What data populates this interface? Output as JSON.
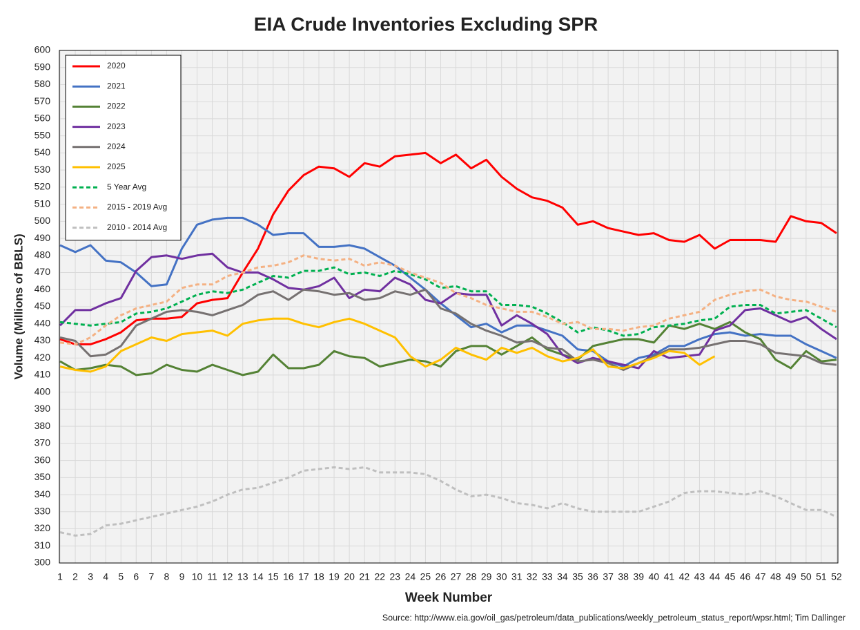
{
  "chart_data": {
    "type": "line",
    "title": "EIA Crude Inventories Excluding SPR",
    "xlabel": "Week Number",
    "ylabel": "Volume (Millions of BBLS)",
    "source": "Source: http://www.eia.gov/oil_gas/petroleum/data_publications/weekly_petroleum_status_report/wpsr.html; Tim Dallinger",
    "x": [
      1,
      2,
      3,
      4,
      5,
      6,
      7,
      8,
      9,
      10,
      11,
      12,
      13,
      14,
      15,
      16,
      17,
      18,
      19,
      20,
      21,
      22,
      23,
      24,
      25,
      26,
      27,
      28,
      29,
      30,
      31,
      32,
      33,
      34,
      35,
      36,
      37,
      38,
      39,
      40,
      41,
      42,
      43,
      44,
      45,
      46,
      47,
      48,
      49,
      50,
      51,
      52
    ],
    "xlim": [
      1,
      52
    ],
    "ylim": [
      300,
      600
    ],
    "yticks": [
      300,
      310,
      320,
      330,
      340,
      350,
      360,
      370,
      380,
      390,
      400,
      410,
      420,
      430,
      440,
      450,
      460,
      470,
      480,
      490,
      500,
      510,
      520,
      530,
      540,
      550,
      560,
      570,
      580,
      590,
      600
    ],
    "grid": true,
    "legend": "upper left",
    "series": [
      {
        "name": "2020",
        "color": "#ff0000",
        "dashed": false,
        "values": [
          431,
          428,
          428,
          431,
          435,
          442,
          443,
          443,
          444,
          452,
          454,
          455,
          470,
          484,
          504,
          518,
          527,
          532,
          531,
          526,
          534,
          532,
          538,
          539,
          540,
          534,
          539,
          531,
          536,
          526,
          519,
          514,
          512,
          508,
          498,
          500,
          496,
          494,
          492,
          493,
          489,
          488,
          492,
          484,
          489,
          489,
          489,
          488,
          503,
          500,
          499,
          493
        ]
      },
      {
        "name": "2021",
        "color": "#4472c4",
        "dashed": false,
        "values": [
          486,
          482,
          486,
          477,
          476,
          470,
          462,
          463,
          484,
          498,
          501,
          502,
          502,
          498,
          492,
          493,
          493,
          485,
          485,
          486,
          484,
          479,
          474,
          467,
          460,
          452,
          445,
          438,
          440,
          435,
          439,
          439,
          436,
          433,
          425,
          424,
          418,
          415,
          420,
          422,
          427,
          427,
          431,
          434,
          435,
          433,
          434,
          433,
          433,
          428,
          424,
          420
        ]
      },
      {
        "name": "2022",
        "color": "#548235",
        "dashed": false,
        "values": [
          418,
          413,
          414,
          416,
          415,
          410,
          411,
          416,
          413,
          412,
          416,
          413,
          410,
          412,
          422,
          414,
          414,
          416,
          424,
          421,
          420,
          415,
          417,
          419,
          418,
          415,
          424,
          427,
          427,
          422,
          427,
          432,
          425,
          422,
          419,
          427,
          429,
          431,
          431,
          429,
          439,
          437,
          440,
          437,
          441,
          435,
          431,
          419,
          414,
          424,
          418,
          419
        ]
      },
      {
        "name": "2023",
        "color": "#7030a0",
        "dashed": false,
        "values": [
          439,
          448,
          448,
          452,
          455,
          471,
          479,
          480,
          478,
          480,
          481,
          473,
          470,
          470,
          466,
          461,
          460,
          462,
          467,
          455,
          460,
          459,
          467,
          463,
          454,
          452,
          458,
          457,
          457,
          439,
          445,
          440,
          434,
          422,
          417,
          420,
          418,
          416,
          414,
          424,
          420,
          421,
          422,
          436,
          439,
          448,
          449,
          445,
          441,
          444,
          437,
          431
        ]
      },
      {
        "name": "2024",
        "color": "#767171",
        "dashed": false,
        "values": [
          432,
          430,
          421,
          422,
          427,
          439,
          443,
          447,
          448,
          447,
          445,
          448,
          451,
          457,
          459,
          454,
          460,
          459,
          457,
          458,
          454,
          455,
          459,
          457,
          460,
          449,
          446,
          440,
          436,
          433,
          429,
          430,
          426,
          425,
          418,
          419,
          417,
          413,
          417,
          421,
          425,
          425,
          426,
          428,
          430,
          430,
          428,
          423,
          422,
          421,
          417,
          416
        ]
      },
      {
        "name": "2025",
        "color": "#ffc000",
        "dashed": false,
        "values": [
          415,
          413,
          412,
          415,
          424,
          428,
          432,
          430,
          434,
          435,
          436,
          433,
          440,
          442,
          443,
          443,
          440,
          438,
          441,
          443,
          440,
          436,
          432,
          421,
          415,
          419,
          426,
          422,
          419,
          426,
          423,
          426,
          421,
          418,
          420,
          425,
          415,
          414,
          417,
          420,
          424,
          423,
          416,
          421,
          null,
          null,
          null,
          null,
          null,
          null,
          null,
          null
        ]
      },
      {
        "name": "5 Year Avg",
        "color": "#00b050",
        "dashed": true,
        "values": [
          441,
          440,
          439,
          440,
          441,
          446,
          447,
          449,
          453,
          457,
          459,
          458,
          460,
          464,
          468,
          467,
          471,
          471,
          473,
          469,
          470,
          468,
          471,
          469,
          466,
          461,
          462,
          459,
          459,
          451,
          451,
          450,
          446,
          441,
          435,
          438,
          436,
          433,
          434,
          438,
          439,
          440,
          442,
          443,
          450,
          451,
          451,
          446,
          447,
          448,
          443,
          438
        ]
      },
      {
        "name": "2015 - 2019 Avg",
        "color": "#f4b183",
        "dashed": true,
        "values": [
          429,
          428,
          432,
          439,
          445,
          449,
          451,
          453,
          461,
          463,
          463,
          468,
          470,
          473,
          474,
          476,
          480,
          478,
          477,
          478,
          474,
          476,
          474,
          470,
          467,
          464,
          458,
          455,
          451,
          449,
          447,
          447,
          444,
          440,
          441,
          437,
          437,
          436,
          438,
          439,
          443,
          445,
          447,
          454,
          457,
          459,
          460,
          456,
          454,
          453,
          450,
          447
        ]
      },
      {
        "name": "2010 - 2014 Avg",
        "color": "#bfbfbf",
        "dashed": true,
        "values": [
          318,
          316,
          317,
          322,
          323,
          325,
          327,
          329,
          331,
          333,
          336,
          340,
          343,
          344,
          347,
          350,
          354,
          355,
          356,
          355,
          356,
          353,
          353,
          353,
          352,
          348,
          343,
          339,
          340,
          338,
          335,
          334,
          332,
          335,
          332,
          330,
          330,
          330,
          330,
          333,
          336,
          341,
          342,
          342,
          341,
          340,
          342,
          339,
          335,
          331,
          331,
          327
        ]
      }
    ]
  }
}
